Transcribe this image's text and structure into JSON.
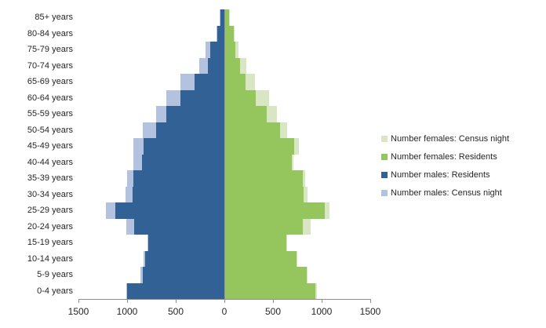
{
  "chart_data": {
    "type": "bar",
    "subtype": "population-pyramid",
    "orientation": "horizontal",
    "title": "",
    "xlabel": "",
    "ylabel": "",
    "gridlines": false,
    "legend_position": "right",
    "categories_top_to_bottom": [
      "85+ years",
      "80-84 years",
      "75-79 years",
      "70-74 years",
      "65-69 years",
      "60-64 years",
      "55-59 years",
      "50-54 years",
      "45-49 years",
      "40-44 years",
      "35-39 years",
      "30-34 years",
      "25-29 years",
      "20-24 years",
      "15-19 years",
      "10-14 years",
      "5-9 years",
      "0-4 years"
    ],
    "x_axis": {
      "tick_labels": [
        "1500",
        "1000",
        "500",
        "0",
        "500",
        "1000",
        "1500"
      ],
      "tick_values_from_center": [
        -1500,
        -1000,
        -500,
        0,
        500,
        1000,
        1500
      ],
      "max_each_side": 1500,
      "tick_interval": 500
    },
    "series": [
      {
        "name": "Number females: Census night",
        "side": "right",
        "layer": "back",
        "color": "#D9E6C4",
        "values": [
          48,
          95,
          140,
          215,
          310,
          455,
          530,
          635,
          760,
          700,
          820,
          845,
          1075,
          875,
          640,
          740,
          850,
          945
        ]
      },
      {
        "name": "Number females: Residents",
        "side": "right",
        "layer": "front",
        "color": "#94C65D",
        "values": [
          40,
          85,
          105,
          155,
          210,
          315,
          430,
          565,
          710,
          685,
          800,
          810,
          1025,
          800,
          625,
          730,
          840,
          930
        ]
      },
      {
        "name": "Number males: Residents",
        "side": "left",
        "layer": "front",
        "color": "#326295",
        "values": [
          40,
          75,
          145,
          170,
          310,
          450,
          595,
          700,
          830,
          845,
          935,
          945,
          1125,
          925,
          780,
          815,
          840,
          1000
        ]
      },
      {
        "name": "Number males: Census night",
        "side": "left",
        "layer": "back",
        "color": "#B3C3DF",
        "values": [
          45,
          80,
          190,
          260,
          450,
          595,
          700,
          835,
          935,
          935,
          1000,
          1015,
          1220,
          1010,
          790,
          830,
          860,
          1010
        ]
      }
    ],
    "axis_color": "#8e8e8e",
    "text_color": "#262626"
  }
}
